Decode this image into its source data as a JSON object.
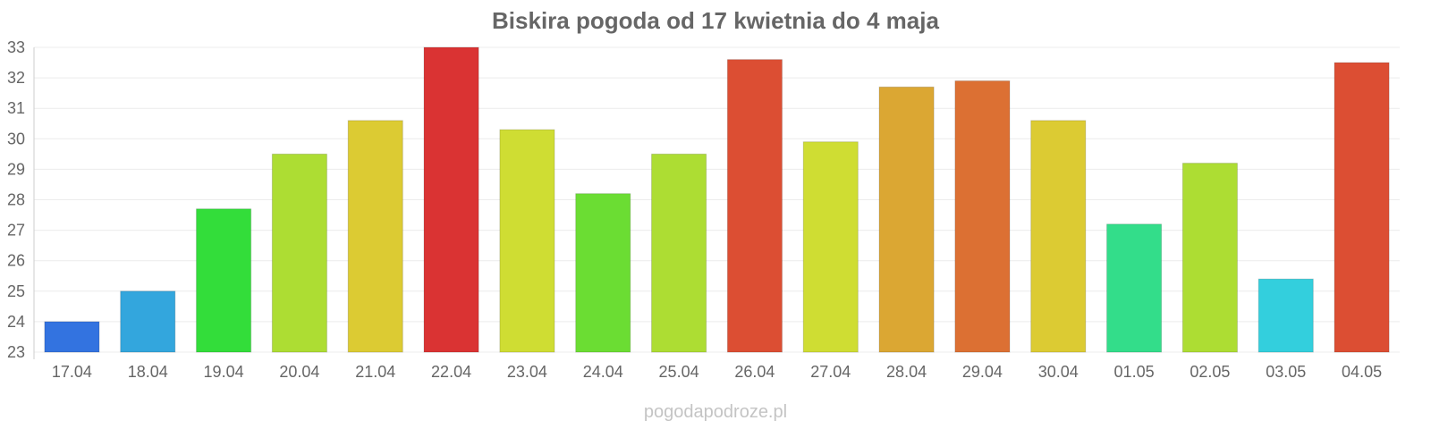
{
  "chart_data": {
    "type": "bar",
    "title": "Biskira pogoda od 17 kwietnia do 4 maja",
    "xlabel": "",
    "ylabel": "",
    "ylim": [
      23,
      33
    ],
    "yticks": [
      23,
      24,
      25,
      26,
      27,
      28,
      29,
      30,
      31,
      32,
      33
    ],
    "grid": true,
    "legend": "none",
    "categories": [
      "17.04",
      "18.04",
      "19.04",
      "20.04",
      "21.04",
      "22.04",
      "23.04",
      "24.04",
      "25.04",
      "26.04",
      "27.04",
      "28.04",
      "29.04",
      "30.04",
      "01.05",
      "02.05",
      "03.05",
      "04.05"
    ],
    "values": [
      24.0,
      25.0,
      27.7,
      29.5,
      30.6,
      33.0,
      30.3,
      28.2,
      29.5,
      32.6,
      29.9,
      31.7,
      31.9,
      30.6,
      27.2,
      29.2,
      25.4,
      32.5
    ],
    "colors": [
      "#3373e0",
      "#33a6dd",
      "#33dd3a",
      "#addd33",
      "#dccb33",
      "#da3333",
      "#cfdd33",
      "#6bdd33",
      "#addd33",
      "#dc4e33",
      "#cfdd33",
      "#dba733",
      "#dc7033",
      "#dccb33",
      "#33dd8a",
      "#addd33",
      "#33cfdd",
      "#dc4e33"
    ]
  },
  "footer": {
    "watermark": "pogodapodroze.pl"
  }
}
